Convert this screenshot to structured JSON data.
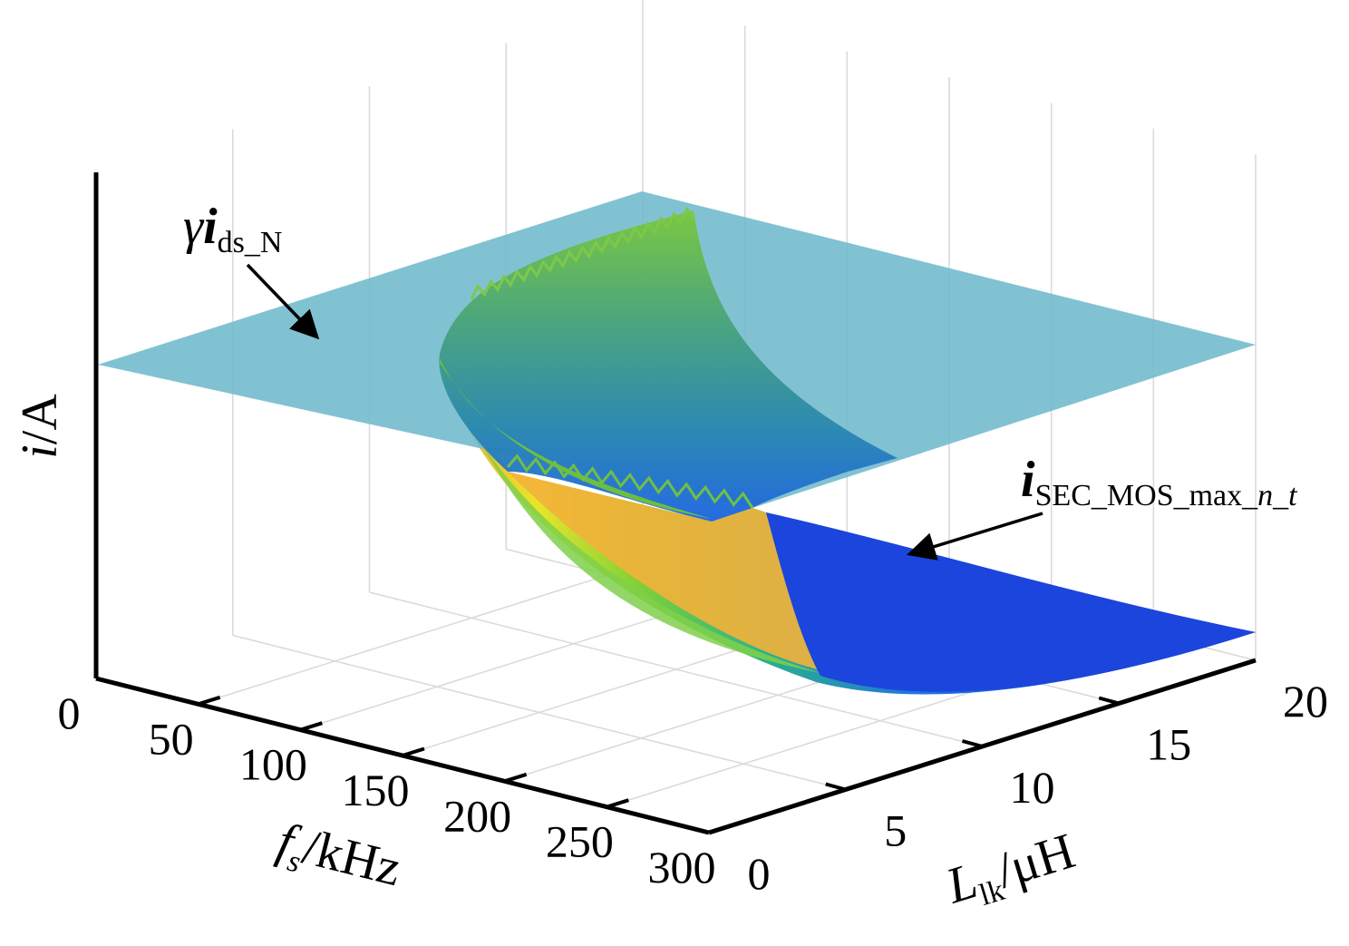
{
  "chart_data": {
    "type": "surface",
    "x_axis": {
      "label_main": "f",
      "label_sub": "s",
      "label_unit": "/kHz",
      "ticks": [
        "0",
        "50",
        "100",
        "150",
        "200",
        "250",
        "300"
      ],
      "range": [
        0,
        300
      ]
    },
    "y_axis": {
      "label_main": "L",
      "label_sub": "lk",
      "label_unit": "/μH",
      "ticks": [
        "0",
        "5",
        "10",
        "15",
        "20"
      ],
      "range": [
        0,
        20
      ]
    },
    "z_axis": {
      "label_main": "i",
      "label_unit": "/A"
    },
    "grid": true,
    "series": [
      {
        "name": "γi_ds_N",
        "kind": "plane",
        "color": "#6fb9cc"
      },
      {
        "name": "i_SEC_MOS_max_n_t",
        "kind": "surface",
        "colormap": [
          "#0a1fb4",
          "#1e63e6",
          "#2f9fc8",
          "#3fb68a",
          "#8fd23a",
          "#e8e52a",
          "#f4a23a"
        ]
      }
    ],
    "annotations": [
      {
        "gamma": "γ",
        "i": "i",
        "sub": "ds_N"
      },
      {
        "i": "i",
        "sub_a": "SEC_MOS_max_",
        "sub_n": "n",
        "sep": "_",
        "sub_t": "t"
      }
    ]
  }
}
